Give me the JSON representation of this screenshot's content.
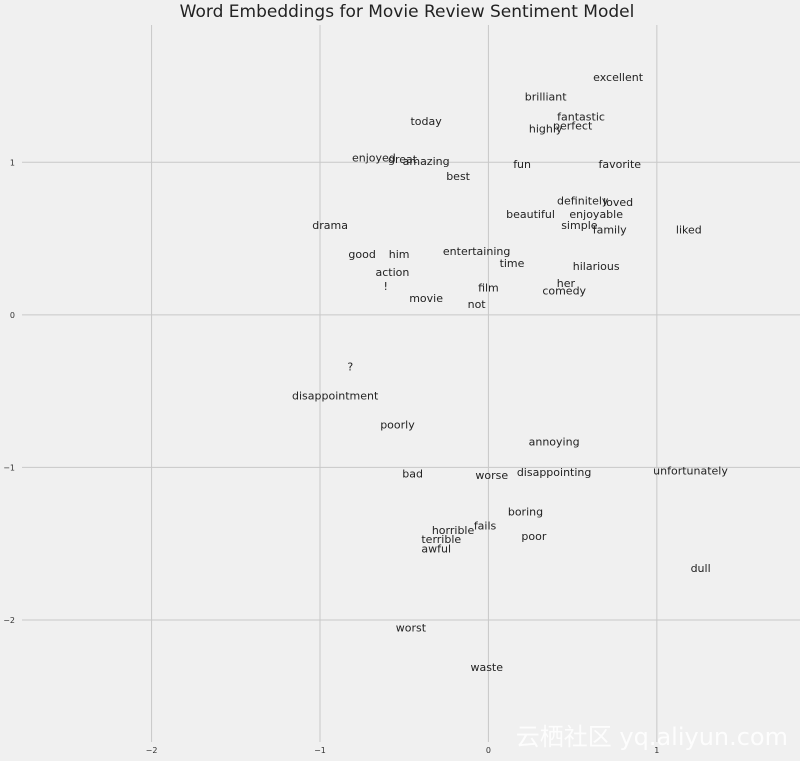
{
  "chart_data": {
    "type": "scatter",
    "title": "Word Embeddings for Movie Review Sentiment Model",
    "xlabel": "",
    "ylabel": "",
    "xlim": [
      -2.9,
      1.85
    ],
    "ylim": [
      -2.8,
      1.9
    ],
    "xticks": [
      -2,
      -1,
      0,
      1
    ],
    "yticks": [
      -2,
      -1,
      0,
      1
    ],
    "xticklabels": [
      "−2",
      "−1",
      "0",
      "1"
    ],
    "yticklabels": [
      "−2",
      "−1",
      "0",
      "1"
    ],
    "grid": true,
    "marker": "text-only",
    "points": [
      {
        "label": "excellent",
        "x": 0.77,
        "y": 1.56
      },
      {
        "label": "brilliant",
        "x": 0.34,
        "y": 1.43
      },
      {
        "label": "fantastic",
        "x": 0.55,
        "y": 1.3
      },
      {
        "label": "perfect",
        "x": 0.5,
        "y": 1.24
      },
      {
        "label": "highly",
        "x": 0.34,
        "y": 1.22
      },
      {
        "label": "today",
        "x": -0.37,
        "y": 1.27
      },
      {
        "label": "enjoyed",
        "x": -0.68,
        "y": 1.03
      },
      {
        "label": "great",
        "x": -0.51,
        "y": 1.02
      },
      {
        "label": "amazing",
        "x": -0.37,
        "y": 1.01
      },
      {
        "label": "fun",
        "x": 0.2,
        "y": 0.99
      },
      {
        "label": "favorite",
        "x": 0.78,
        "y": 0.99
      },
      {
        "label": "best",
        "x": -0.18,
        "y": 0.91
      },
      {
        "label": "definitely",
        "x": 0.56,
        "y": 0.75
      },
      {
        "label": "loved",
        "x": 0.77,
        "y": 0.74
      },
      {
        "label": "beautiful",
        "x": 0.25,
        "y": 0.66
      },
      {
        "label": "enjoyable",
        "x": 0.64,
        "y": 0.66
      },
      {
        "label": "simple",
        "x": 0.54,
        "y": 0.59
      },
      {
        "label": "family",
        "x": 0.72,
        "y": 0.56
      },
      {
        "label": "liked",
        "x": 1.19,
        "y": 0.56
      },
      {
        "label": "drama",
        "x": -0.94,
        "y": 0.59
      },
      {
        "label": "good",
        "x": -0.75,
        "y": 0.4
      },
      {
        "label": "him",
        "x": -0.53,
        "y": 0.4
      },
      {
        "label": "entertaining",
        "x": -0.07,
        "y": 0.42
      },
      {
        "label": "time",
        "x": 0.14,
        "y": 0.34
      },
      {
        "label": "hilarious",
        "x": 0.64,
        "y": 0.32
      },
      {
        "label": "action",
        "x": -0.57,
        "y": 0.28
      },
      {
        "label": "!",
        "x": -0.61,
        "y": 0.19
      },
      {
        "label": "her",
        "x": 0.46,
        "y": 0.21
      },
      {
        "label": "film",
        "x": 0.0,
        "y": 0.18
      },
      {
        "label": "comedy",
        "x": 0.45,
        "y": 0.16
      },
      {
        "label": "movie",
        "x": -0.37,
        "y": 0.11
      },
      {
        "label": "not",
        "x": -0.07,
        "y": 0.07
      },
      {
        "label": "?",
        "x": -0.82,
        "y": -0.34
      },
      {
        "label": "disappointment",
        "x": -0.91,
        "y": -0.53
      },
      {
        "label": "poorly",
        "x": -0.54,
        "y": -0.72
      },
      {
        "label": "annoying",
        "x": 0.39,
        "y": -0.83
      },
      {
        "label": "bad",
        "x": -0.45,
        "y": -1.04
      },
      {
        "label": "worse",
        "x": 0.02,
        "y": -1.05
      },
      {
        "label": "disappointing",
        "x": 0.39,
        "y": -1.03
      },
      {
        "label": "unfortunately",
        "x": 1.2,
        "y": -1.02
      },
      {
        "label": "boring",
        "x": 0.22,
        "y": -1.29
      },
      {
        "label": "fails",
        "x": -0.02,
        "y": -1.38
      },
      {
        "label": "horrible",
        "x": -0.21,
        "y": -1.41
      },
      {
        "label": "poor",
        "x": 0.27,
        "y": -1.45
      },
      {
        "label": "terrible",
        "x": -0.28,
        "y": -1.47
      },
      {
        "label": "awful",
        "x": -0.31,
        "y": -1.53
      },
      {
        "label": "dull",
        "x": 1.26,
        "y": -1.66
      },
      {
        "label": "worst",
        "x": -0.46,
        "y": -2.05
      },
      {
        "label": "waste",
        "x": -0.01,
        "y": -2.31
      }
    ]
  },
  "watermark": "云栖社区 yq.aliyun.com"
}
